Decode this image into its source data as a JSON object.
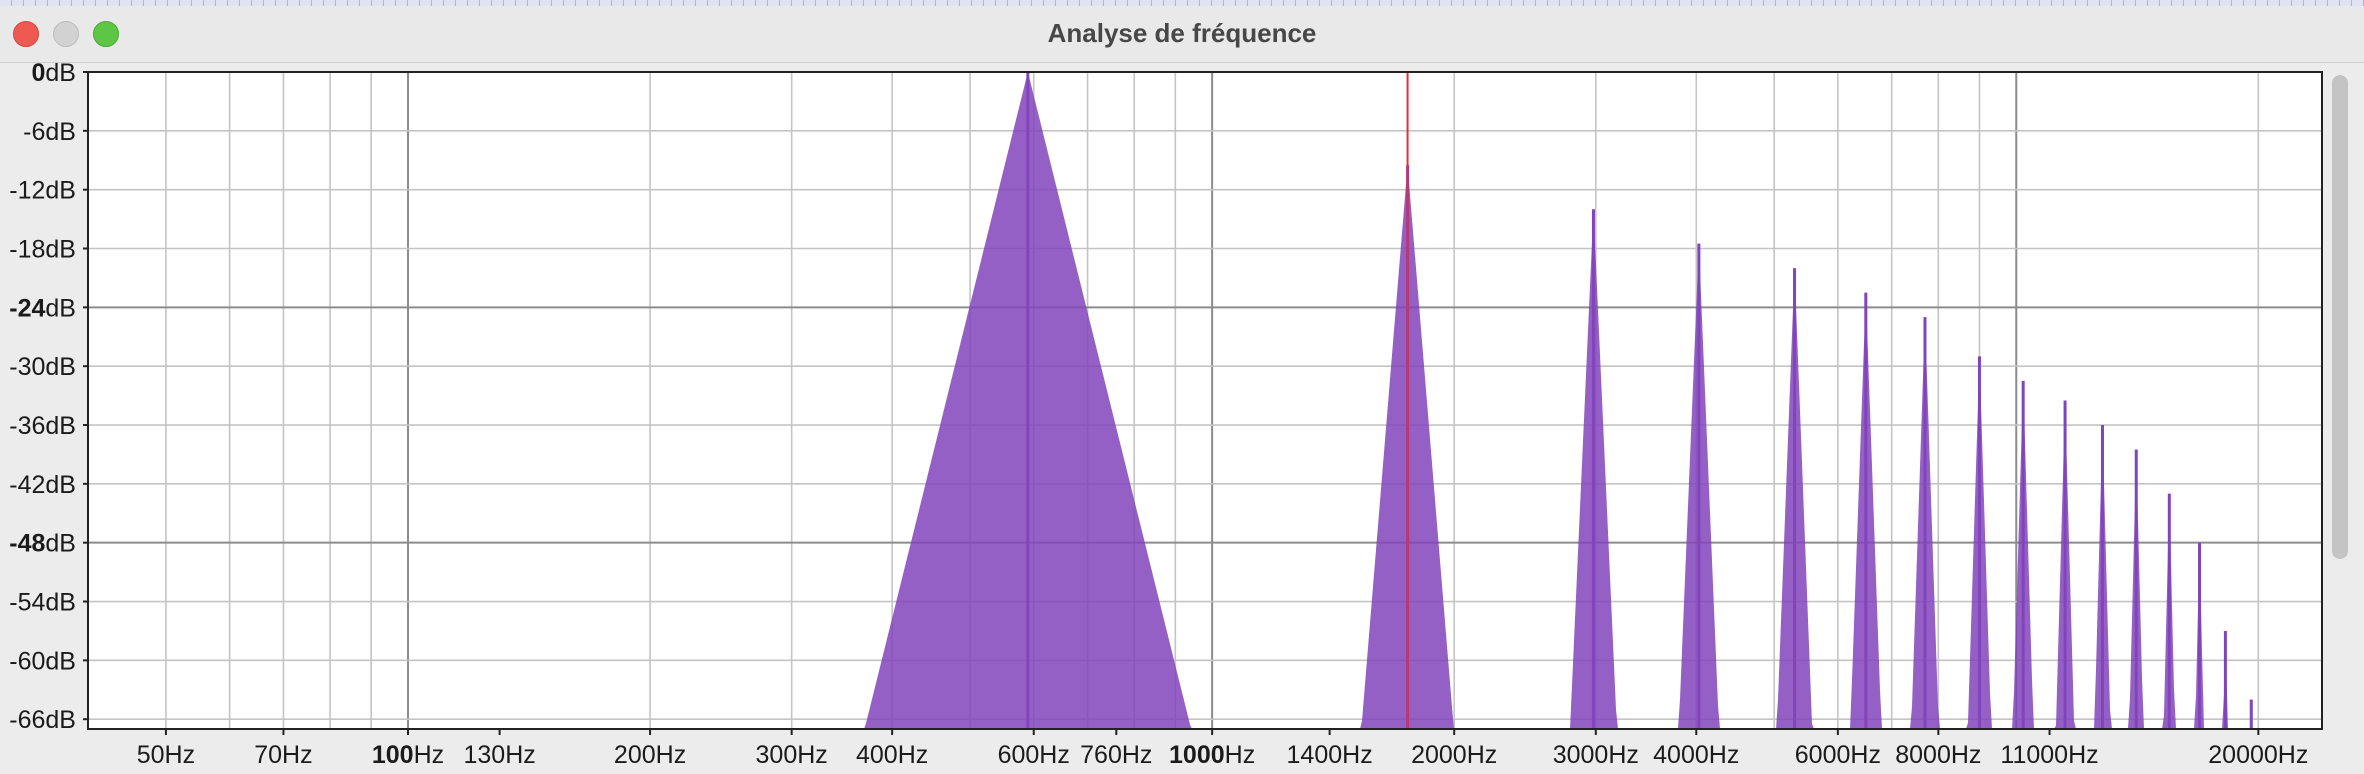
{
  "window": {
    "title": "Analyse de fréquence"
  },
  "chart_data": {
    "type": "area",
    "x_scale": "log",
    "x_range_hz": [
      40,
      24000
    ],
    "y_range_db": [
      -67,
      0
    ],
    "grid": true,
    "color": "#8144bb",
    "cursor_hz": 1750,
    "cursor_color": "#e53030",
    "y_ticks": [
      {
        "db": 0,
        "label": "0",
        "unit": "dB",
        "major": true
      },
      {
        "db": -6,
        "label": "-6",
        "unit": "dB",
        "major": false
      },
      {
        "db": -12,
        "label": "-12",
        "unit": "dB",
        "major": false
      },
      {
        "db": -18,
        "label": "-18",
        "unit": "dB",
        "major": false
      },
      {
        "db": -24,
        "label": "-24",
        "unit": "dB",
        "major": true
      },
      {
        "db": -30,
        "label": "-30",
        "unit": "dB",
        "major": false
      },
      {
        "db": -36,
        "label": "-36",
        "unit": "dB",
        "major": false
      },
      {
        "db": -42,
        "label": "-42",
        "unit": "dB",
        "major": false
      },
      {
        "db": -48,
        "label": "-48",
        "unit": "dB",
        "major": true
      },
      {
        "db": -54,
        "label": "-54",
        "unit": "dB",
        "major": false
      },
      {
        "db": -60,
        "label": "-60",
        "unit": "dB",
        "major": false
      },
      {
        "db": -66,
        "label": "-66",
        "unit": "dB",
        "major": false
      }
    ],
    "x_labels": [
      {
        "hz": 50,
        "label": "50",
        "unit": "Hz",
        "major": false
      },
      {
        "hz": 70,
        "label": "70",
        "unit": "Hz",
        "major": false
      },
      {
        "hz": 100,
        "label": "100",
        "unit": "Hz",
        "major": true
      },
      {
        "hz": 130,
        "label": "130",
        "unit": "Hz",
        "major": false
      },
      {
        "hz": 200,
        "label": "200",
        "unit": "Hz",
        "major": false
      },
      {
        "hz": 300,
        "label": "300",
        "unit": "Hz",
        "major": false
      },
      {
        "hz": 400,
        "label": "400",
        "unit": "Hz",
        "major": false
      },
      {
        "hz": 600,
        "label": "600",
        "unit": "Hz",
        "major": false
      },
      {
        "hz": 760,
        "label": "760",
        "unit": "Hz",
        "major": false
      },
      {
        "hz": 1000,
        "label": "1000",
        "unit": "Hz",
        "major": true
      },
      {
        "hz": 1400,
        "label": "1400",
        "unit": "Hz",
        "major": false
      },
      {
        "hz": 2000,
        "label": "2000",
        "unit": "Hz",
        "major": false
      },
      {
        "hz": 3000,
        "label": "3000",
        "unit": "Hz",
        "major": false
      },
      {
        "hz": 4000,
        "label": "4000",
        "unit": "Hz",
        "major": false
      },
      {
        "hz": 6000,
        "label": "6000",
        "unit": "Hz",
        "major": false
      },
      {
        "hz": 8000,
        "label": "8000",
        "unit": "Hz",
        "major": false
      },
      {
        "hz": 11000,
        "label": "11000",
        "unit": "Hz",
        "major": false
      },
      {
        "hz": 20000,
        "label": "20000",
        "unit": "Hz",
        "major": false
      }
    ],
    "peaks": [
      {
        "hz": 590,
        "db": 0
      },
      {
        "hz": 1750,
        "db": -9.5
      },
      {
        "hz": 2980,
        "db": -14
      },
      {
        "hz": 4030,
        "db": -17.5
      },
      {
        "hz": 5300,
        "db": -20
      },
      {
        "hz": 6500,
        "db": -22.5
      },
      {
        "hz": 7700,
        "db": -25
      },
      {
        "hz": 9000,
        "db": -29
      },
      {
        "hz": 10200,
        "db": -31.5
      },
      {
        "hz": 11500,
        "db": -33.5
      },
      {
        "hz": 12800,
        "db": -36
      },
      {
        "hz": 14100,
        "db": -38.5
      },
      {
        "hz": 15500,
        "db": -43
      },
      {
        "hz": 16900,
        "db": -48
      },
      {
        "hz": 18200,
        "db": -57
      },
      {
        "hz": 19600,
        "db": -64
      }
    ]
  }
}
